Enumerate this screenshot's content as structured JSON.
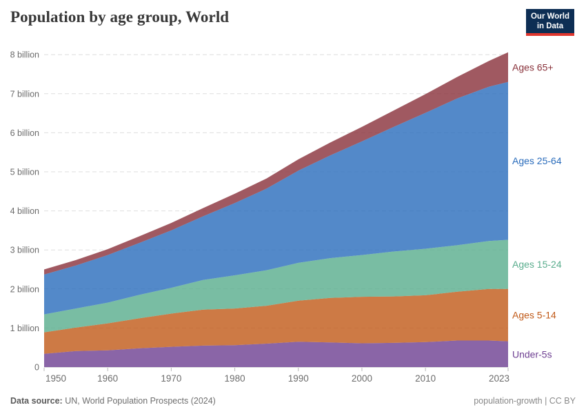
{
  "header": {
    "title": "Population by age group, World",
    "logo": {
      "line1": "Our World",
      "line2": "in Data",
      "bg_color": "#0d2e54",
      "accent_color": "#e0362e"
    }
  },
  "chart_data": {
    "type": "area",
    "stacked": true,
    "title": "Population by age group, World",
    "unit": "billion people",
    "grid": "dashed",
    "legend_position": "right",
    "fill_opacity": 0.8,
    "ylim": [
      0,
      8.2
    ],
    "x": [
      1950,
      1955,
      1960,
      1965,
      1970,
      1975,
      1980,
      1985,
      1990,
      1995,
      2000,
      2005,
      2010,
      2015,
      2020,
      2023
    ],
    "series": [
      {
        "name": "Under-5s",
        "color": "#6D3E91",
        "values": [
          0.34,
          0.41,
          0.43,
          0.48,
          0.52,
          0.55,
          0.56,
          0.6,
          0.65,
          0.63,
          0.61,
          0.62,
          0.64,
          0.68,
          0.68,
          0.66
        ]
      },
      {
        "name": "Ages 5-14",
        "color": "#C05917",
        "values": [
          0.55,
          0.6,
          0.69,
          0.77,
          0.85,
          0.92,
          0.94,
          0.97,
          1.05,
          1.14,
          1.19,
          1.19,
          1.2,
          1.25,
          1.32,
          1.34
        ]
      },
      {
        "name": "Ages 15-24",
        "color": "#58AC8C",
        "values": [
          0.46,
          0.49,
          0.53,
          0.6,
          0.66,
          0.76,
          0.85,
          0.91,
          0.97,
          1.02,
          1.07,
          1.15,
          1.19,
          1.19,
          1.23,
          1.26
        ]
      },
      {
        "name": "Ages 25-64",
        "color": "#286BBB",
        "values": [
          1.02,
          1.1,
          1.22,
          1.33,
          1.47,
          1.63,
          1.85,
          2.09,
          2.36,
          2.63,
          2.91,
          3.19,
          3.48,
          3.76,
          3.95,
          4.04
        ]
      },
      {
        "name": "Ages 65+",
        "color": "#883039",
        "values": [
          0.13,
          0.14,
          0.15,
          0.17,
          0.19,
          0.21,
          0.24,
          0.26,
          0.29,
          0.33,
          0.37,
          0.42,
          0.48,
          0.55,
          0.66,
          0.76
        ]
      }
    ],
    "y_ticks": [
      {
        "value": 0,
        "label": "0"
      },
      {
        "value": 1,
        "label": "1 billion"
      },
      {
        "value": 2,
        "label": "2 billion"
      },
      {
        "value": 3,
        "label": "3 billion"
      },
      {
        "value": 4,
        "label": "4 billion"
      },
      {
        "value": 5,
        "label": "5 billion"
      },
      {
        "value": 6,
        "label": "6 billion"
      },
      {
        "value": 7,
        "label": "7 billion"
      },
      {
        "value": 8,
        "label": "8 billion"
      }
    ],
    "x_ticks": [
      1950,
      1960,
      1970,
      1980,
      1990,
      2000,
      2010,
      2023
    ]
  },
  "footer": {
    "source_label": "Data source:",
    "source_value": "UN, World Population Prospects (2024)",
    "license": "population-growth | CC BY"
  }
}
